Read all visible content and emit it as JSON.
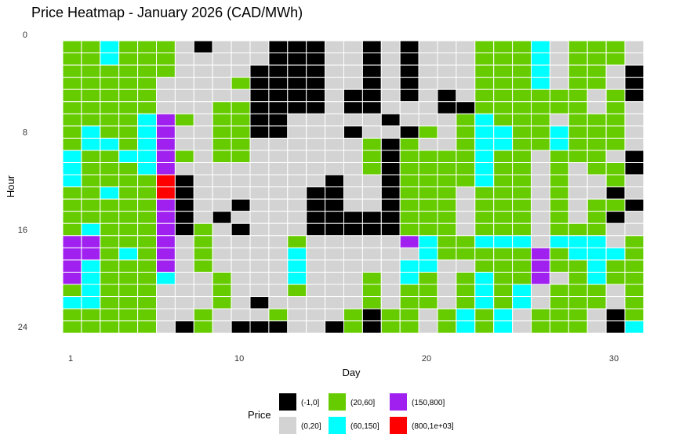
{
  "chart_data": {
    "type": "heatmap",
    "title": "Price Heatmap - January 2026 (CAD/MWh)",
    "xlabel": "Day",
    "ylabel": "Hour",
    "x_ticks": [
      1,
      10,
      20,
      30
    ],
    "y_ticks": [
      0,
      8,
      16,
      24
    ],
    "x_range": [
      1,
      31
    ],
    "y_range": [
      0,
      24
    ],
    "y_reversed": true,
    "grid": false,
    "legend": {
      "title": "Price",
      "placement": "bottom",
      "entries": [
        {
          "key": "A",
          "label": "(-1,0]",
          "color": "#000000"
        },
        {
          "key": "B",
          "label": "(0,20]",
          "color": "#d3d3d3"
        },
        {
          "key": "C",
          "label": "(20,60]",
          "color": "#66cc00"
        },
        {
          "key": "D",
          "label": "(60,150]",
          "color": "#00ffff"
        },
        {
          "key": "E",
          "label": "(150,800]",
          "color": "#a020f0"
        },
        {
          "key": "F",
          "label": "(800,1e+03]",
          "color": "#ff0000"
        }
      ]
    },
    "days": [
      1,
      2,
      3,
      4,
      5,
      6,
      7,
      8,
      9,
      10,
      11,
      12,
      13,
      14,
      15,
      16,
      17,
      18,
      19,
      20,
      21,
      22,
      23,
      24,
      25,
      26,
      27,
      28,
      29,
      30,
      31
    ],
    "hours": [
      0,
      1,
      2,
      3,
      4,
      5,
      6,
      7,
      8,
      9,
      10,
      11,
      12,
      13,
      14,
      15,
      16,
      17,
      18,
      19,
      20,
      21,
      22,
      23,
      24
    ],
    "price_bins_by_hour": [
      "CCDCCCBABBBAAABBABABBBCCCDBCCCB",
      "CCDCCCBBBBBAAABBABABBBCCCDBCCCB",
      "CCCCCCBBBBAAAABBABABBBCCCDBCCBA",
      "CCCCCBBBBCAAAABBABABBBCCCDBCCBA",
      "CCCCCBBBBBAAAABAABABABCCCCCCBCA",
      "CCCCCBBBCCAAAABAABBBAACCCCCCBCB",
      "CCCCDECBCCAABBBBBABBBCDCCCBCCCB",
      "CDCCDEBBCCAABBBABBACBCDDCCDCCCB",
      "CDDCDEBBCCBBBBBBCACBBCDDCCDCCCB",
      "DCCDDECBCCBBBBBBCACCCCDCCBCCCBA",
      "DCCCDEBBBBBBBBBBCACCCCDCCBCBCCA",
      "DCCCCFABBBBBBBABBACCCCDCCBCBBCB",
      "CCDCCFABBBBBBAABBACCCBCCCBCBBAB",
      "CCCCCEABBABBBAABBACCCBCCCBCBCCA",
      "CCCCCEABABBBBAAAAACCCBCCCBCBCAB",
      "CDCCCEACBABBBAAAAACCCBCCCBCCCBB",
      "EECCCEBCBBBBCBBBBBEDCCDDDBDDDBC",
      "EECDCEBCBBBBDBBBBBBDCCCCCECDDDC",
      "EDCCCEBCBBBBDBBBBBDDBBCCCECCDCC",
      "EDCCCDBBCBBBDBBBCBDCBCDCCEBCDCC",
      "CDCCCBBBCBBBCBBBCBCCBCDCDBCCCBC",
      "DDCCCBBBCBABBBBBCBCCBCDCDBCCCBC",
      "CCCCCBBCBBBCBBBCACCBCDCDBCCCBAC",
      "CCCCCBACBAAABBACACCBCDCDBCCCBAD"
    ]
  }
}
